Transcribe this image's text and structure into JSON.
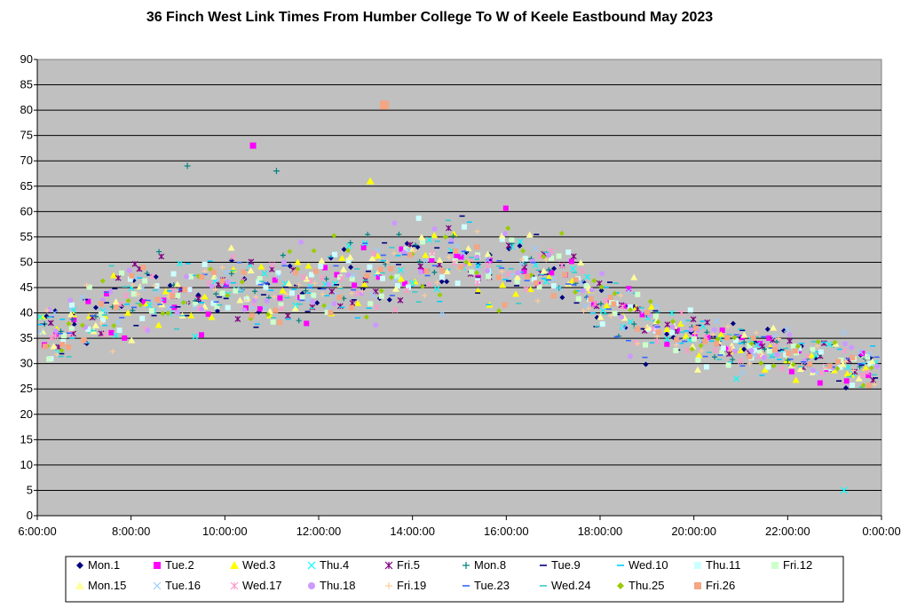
{
  "chart_data": {
    "type": "scatter",
    "title": "36 Finch West Link Times From Humber College To W of Keele Eastbound May 2023",
    "xlabel": "",
    "ylabel": "",
    "x_range": [
      "6:00:00",
      "0:00:00"
    ],
    "xlim_hours": [
      6,
      24
    ],
    "ylim": [
      0,
      90
    ],
    "y_ticks": [
      0,
      5,
      10,
      15,
      20,
      25,
      30,
      35,
      40,
      45,
      50,
      55,
      60,
      65,
      70,
      75,
      80,
      85,
      90
    ],
    "x_ticks": [
      "6:00:00",
      "8:00:00",
      "10:00:00",
      "12:00:00",
      "14:00:00",
      "16:00:00",
      "18:00:00",
      "20:00:00",
      "22:00:00",
      "0:00:00"
    ],
    "plot_background": "#c0c0c0",
    "grid": "horizontal",
    "legend_position": "bottom",
    "profile": {
      "description_hours": [
        6.0,
        6.5,
        7.0,
        7.5,
        8.0,
        9.0,
        10.0,
        11.0,
        12.0,
        13.0,
        14.0,
        15.0,
        16.0,
        17.0,
        17.5,
        18.0,
        19.0,
        20.0,
        21.0,
        22.0,
        23.0,
        24.0
      ],
      "median_minutes": [
        37,
        35,
        38,
        41,
        43,
        44,
        44,
        45,
        45,
        47,
        49,
        51,
        50,
        48,
        46,
        42,
        38,
        35,
        33,
        32,
        30,
        29
      ]
    },
    "notable_points": [
      {
        "series": "Fri.26",
        "time": "13:24:00",
        "minutes": 81
      },
      {
        "series": "Tue.2",
        "time": "10:36:00",
        "minutes": 73
      },
      {
        "series": "Mon.8",
        "time": "9:12:00",
        "minutes": 69
      },
      {
        "series": "Mon.8",
        "time": "11:06:00",
        "minutes": 68
      },
      {
        "series": "Wed.3",
        "time": "13:06:00",
        "minutes": 66
      },
      {
        "series": "Thu.4",
        "time": "23:12:00",
        "minutes": 5
      }
    ],
    "series": [
      {
        "name": "Mon.1",
        "marker": "diamond",
        "color": "#000080",
        "seed": 1
      },
      {
        "name": "Tue.2",
        "marker": "square",
        "color": "#ff00ff",
        "seed": 2
      },
      {
        "name": "Wed.3",
        "marker": "triangle",
        "color": "#ffff00",
        "seed": 3
      },
      {
        "name": "Thu.4",
        "marker": "x",
        "color": "#00ffff",
        "seed": 4
      },
      {
        "name": "Fri.5",
        "marker": "star",
        "color": "#800080",
        "seed": 5
      },
      {
        "name": "Mon.8",
        "marker": "plus",
        "color": "#008080",
        "seed": 8
      },
      {
        "name": "Tue.9",
        "marker": "dash",
        "color": "#000080",
        "seed": 9
      },
      {
        "name": "Wed.10",
        "marker": "dash",
        "color": "#00ccff",
        "seed": 10
      },
      {
        "name": "Thu.11",
        "marker": "square",
        "color": "#ccffff",
        "seed": 11
      },
      {
        "name": "Fri.12",
        "marker": "square",
        "color": "#ccffcc",
        "seed": 12
      },
      {
        "name": "Mon.15",
        "marker": "triangle",
        "color": "#ffff99",
        "seed": 15
      },
      {
        "name": "Tue.16",
        "marker": "x",
        "color": "#99ccff",
        "seed": 16
      },
      {
        "name": "Wed.17",
        "marker": "star",
        "color": "#ff99cc",
        "seed": 17
      },
      {
        "name": "Thu.18",
        "marker": "circle",
        "color": "#cc99ff",
        "seed": 18
      },
      {
        "name": "Fri.19",
        "marker": "plus",
        "color": "#ffcc99",
        "seed": 19
      },
      {
        "name": "Tue.23",
        "marker": "dash",
        "color": "#3366ff",
        "seed": 23
      },
      {
        "name": "Wed.24",
        "marker": "dash",
        "color": "#33cccc",
        "seed": 24
      },
      {
        "name": "Thu.25",
        "marker": "diamond",
        "color": "#99cc00",
        "seed": 25
      },
      {
        "name": "Fri.26",
        "marker": "square",
        "color": "#f4a582",
        "seed": 26
      }
    ]
  }
}
